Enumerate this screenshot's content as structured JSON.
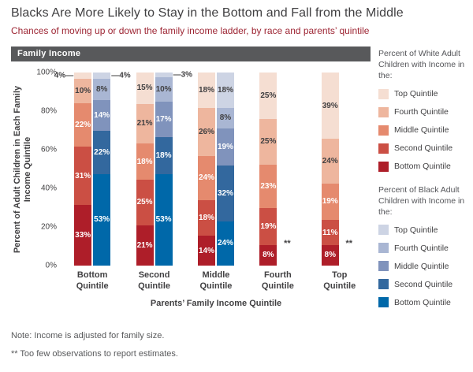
{
  "title": "Blacks Are More Likely to Stay in the Bottom and Fall from the Middle",
  "subtitle": "Chances of moving up or down the family income ladder, by race and parents’ quintile",
  "band_label": "Family Income",
  "axes": {
    "y_label_line1": "Percent of  Adult Children in Each Family",
    "y_label_line2": "Income  Quintile",
    "y_ticks": [
      "100%",
      "80%",
      "60%",
      "40%",
      "20%",
      "0%"
    ],
    "x_label": "Parents’ Family Income Quintile"
  },
  "legend": {
    "white": {
      "title": "Percent of White Adult Children with Income in the:",
      "items": [
        {
          "label": "Top Quintile",
          "color": "#f5ded2"
        },
        {
          "label": "Fourth Quintile",
          "color": "#eeb69e"
        },
        {
          "label": "Middle Quintile",
          "color": "#e58a6e"
        },
        {
          "label": "Second Quintile",
          "color": "#cb4f44"
        },
        {
          "label": "Bottom Quintile",
          "color": "#ae1e29"
        }
      ]
    },
    "black": {
      "title": "Percent of Black Adult Children with Income in the:",
      "items": [
        {
          "label": "Top Quintile",
          "color": "#cdd4e4"
        },
        {
          "label": "Fourth Quintile",
          "color": "#a9b6d3"
        },
        {
          "label": "Middle Quintile",
          "color": "#8093bc"
        },
        {
          "label": "Second Quintile",
          "color": "#33689e"
        },
        {
          "label": "Bottom Quintile",
          "color": "#0068a9"
        }
      ]
    }
  },
  "notes": [
    "Note: Income is adjusted for family size.",
    "** Too few observations to report estimates."
  ],
  "chart_data": {
    "type": "bar",
    "stacked": true,
    "unit": "percent",
    "grid": false,
    "legend_position": "right",
    "ylim": [
      0,
      100
    ],
    "ylabel": "Percent of Adult Children in Each Family Income Quintile",
    "xlabel": "Parents’ Family Income Quintile",
    "categories": [
      "Bottom Quintile",
      "Second Quintile",
      "Middle Quintile",
      "Fourth Quintile",
      "Top Quintile"
    ],
    "quintiles_top_to_bottom": [
      "Top Quintile",
      "Fourth Quintile",
      "Middle Quintile",
      "Second Quintile",
      "Bottom Quintile"
    ],
    "series": [
      {
        "name": "White adult children",
        "colors": [
          "#f5ded2",
          "#eeb69e",
          "#e58a6e",
          "#cb4f44",
          "#ae1e29"
        ],
        "values": [
          [
            4,
            10,
            22,
            31,
            33
          ],
          [
            15,
            21,
            18,
            25,
            21
          ],
          [
            18,
            26,
            24,
            18,
            14
          ],
          [
            25,
            25,
            23,
            19,
            8
          ],
          [
            39,
            24,
            19,
            11,
            8
          ]
        ]
      },
      {
        "name": "Black adult children",
        "colors": [
          "#cdd4e4",
          "#a9b6d3",
          "#8093bc",
          "#33689e",
          "#0068a9"
        ],
        "values": [
          [
            4,
            8,
            14,
            22,
            53
          ],
          [
            3,
            10,
            17,
            18,
            53
          ],
          [
            18,
            8,
            19,
            32,
            24
          ],
          null,
          null
        ]
      }
    ],
    "callout_max": 4,
    "too_few_marker": "**",
    "too_few_note": "Black bars omitted for Fourth Quintile and Top Quintile parents"
  }
}
